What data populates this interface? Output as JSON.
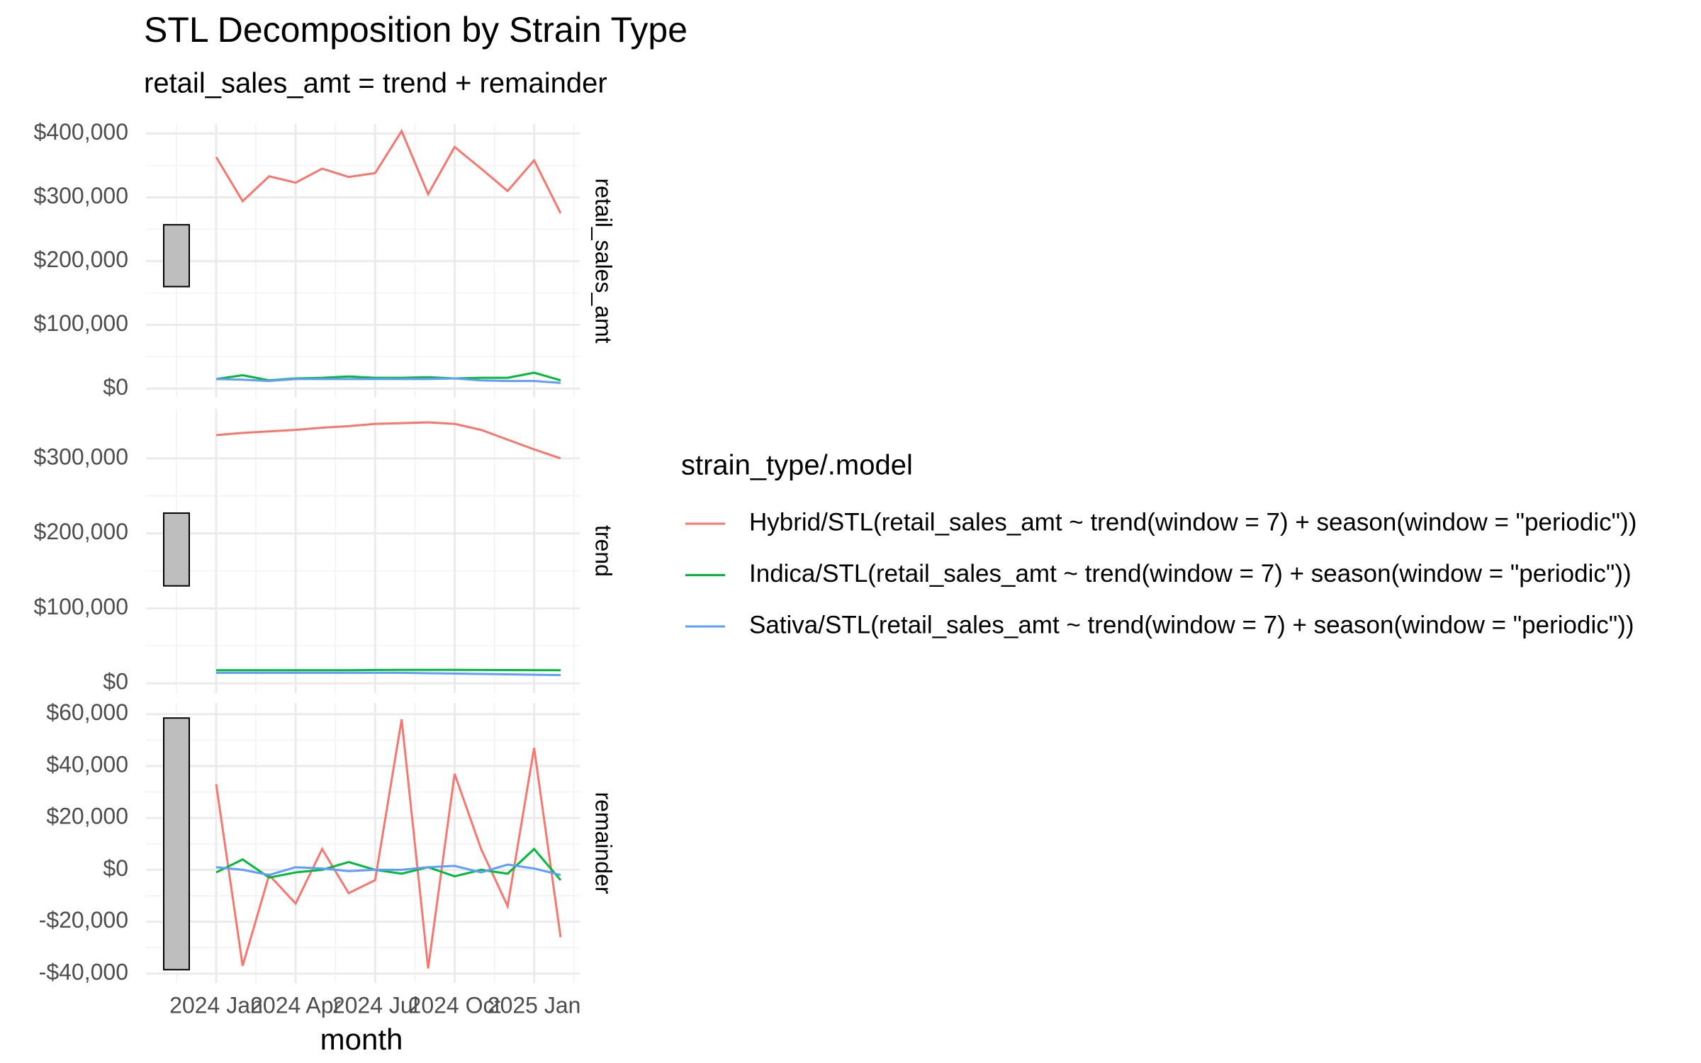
{
  "chart_data": {
    "type": "line",
    "title": "STL Decomposition by Strain Type",
    "subtitle": "retail_sales_amt = trend + remainder",
    "x_label": "month",
    "legend_title": "strain_type/.model",
    "grid": true,
    "x": [
      "2024-01",
      "2024-02",
      "2024-03",
      "2024-04",
      "2024-05",
      "2024-06",
      "2024-07",
      "2024-08",
      "2024-09",
      "2024-10",
      "2024-11",
      "2024-12",
      "2025-01",
      "2025-02"
    ],
    "xticks": [
      {
        "value": "2024-01",
        "label": "2024 Jan"
      },
      {
        "value": "2024-04",
        "label": "2024 Apr"
      },
      {
        "value": "2024-07",
        "label": "2024 Jul"
      },
      {
        "value": "2024-10",
        "label": "2024 Oct"
      },
      {
        "value": "2025-01",
        "label": "2025 Jan"
      }
    ],
    "legend": [
      {
        "name": "Hybrid/STL(retail_sales_amt ~ trend(window = 7) + season(window = \"periodic\"))",
        "color": "#f8766d"
      },
      {
        "name": "Indica/STL(retail_sales_amt ~ trend(window = 7) + season(window = \"periodic\"))",
        "color": "#00ba38"
      },
      {
        "name": "Sativa/STL(retail_sales_amt ~ trend(window = 7) + season(window = \"periodic\"))",
        "color": "#619cff"
      }
    ],
    "panels": [
      {
        "label": "retail_sales_amt",
        "ylim": [
          -14000,
          415000
        ],
        "range_bar": [
          160000,
          257000
        ],
        "yticks": [
          {
            "value": 0,
            "label": "$0"
          },
          {
            "value": 100000,
            "label": "$100,000"
          },
          {
            "value": 200000,
            "label": "$200,000"
          },
          {
            "value": 300000,
            "label": "$300,000"
          },
          {
            "value": 400000,
            "label": "$400,000"
          }
        ],
        "series": [
          {
            "values": [
              363000,
              294000,
              333000,
              323000,
              345000,
              332000,
              338000,
              404000,
              305000,
              379000,
              345000,
              310000,
              358000,
              275000
            ]
          },
          {
            "values": [
              15000,
              21000,
              13000,
              16000,
              17000,
              19000,
              17000,
              17000,
              18000,
              16000,
              17000,
              17000,
              25000,
              13000
            ]
          },
          {
            "values": [
              15000,
              14000,
              12000,
              15000,
              15000,
              15000,
              15000,
              15000,
              15000,
              16000,
              13000,
              12000,
              12000,
              9000
            ]
          }
        ]
      },
      {
        "label": "trend",
        "ylim": [
          -13000,
          366000
        ],
        "range_bar": [
          130000,
          227000
        ],
        "yticks": [
          {
            "value": 0,
            "label": "$0"
          },
          {
            "value": 100000,
            "label": "$100,000"
          },
          {
            "value": 200000,
            "label": "$200,000"
          },
          {
            "value": 300000,
            "label": "$300,000"
          }
        ],
        "series": [
          {
            "values": [
              331000,
              334000,
              336000,
              338000,
              341000,
              343000,
              346000,
              347000,
              348000,
              346000,
              338000,
              325000,
              312000,
              300000
            ]
          },
          {
            "values": [
              17500,
              17500,
              17500,
              17500,
              17500,
              17500,
              17800,
              18000,
              18000,
              18000,
              17800,
              17700,
              17600,
              17500
            ]
          },
          {
            "values": [
              14000,
              14000,
              14000,
              14000,
              14000,
              14000,
              14000,
              14000,
              13500,
              13000,
              12500,
              12000,
              11500,
              11000
            ]
          }
        ]
      },
      {
        "label": "remainder",
        "ylim": [
          -43600,
          64300
        ],
        "range_bar": [
          -38500,
          58500
        ],
        "yticks": [
          {
            "value": -40000,
            "label": "-$40,000"
          },
          {
            "value": -20000,
            "label": "-$20,000"
          },
          {
            "value": 0,
            "label": "$0"
          },
          {
            "value": 20000,
            "label": "$20,000"
          },
          {
            "value": 40000,
            "label": "$40,000"
          },
          {
            "value": 60000,
            "label": "$60,000"
          }
        ],
        "series": [
          {
            "values": [
              33000,
              -37000,
              -2000,
              -13000,
              8000,
              -9000,
              -4000,
              58000,
              -38000,
              37000,
              8000,
              -14000,
              47000,
              -26000
            ]
          },
          {
            "values": [
              -1000,
              4000,
              -3000,
              -1000,
              0,
              3000,
              0,
              -1500,
              1000,
              -2500,
              0,
              -1500,
              8000,
              -4000
            ]
          },
          {
            "values": [
              1000,
              0,
              -2000,
              1000,
              500,
              -500,
              0,
              0,
              1000,
              1500,
              -1000,
              2000,
              500,
              -2000
            ]
          }
        ]
      }
    ]
  }
}
